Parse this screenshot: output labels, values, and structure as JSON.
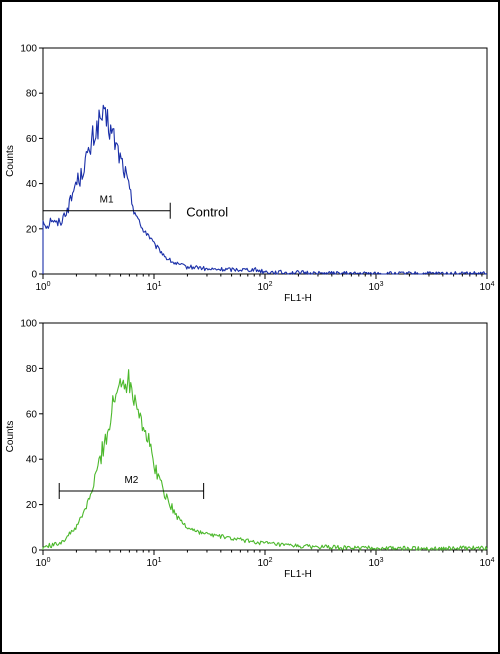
{
  "chart_data": [
    {
      "type": "line",
      "xlabel": "FL1-H",
      "ylabel": "Counts",
      "xscale": "log",
      "xlim": [
        1,
        10000
      ],
      "ylim": [
        0,
        100
      ],
      "x_ticks": [
        {
          "base": "10",
          "exp": "0"
        },
        {
          "base": "10",
          "exp": "1"
        },
        {
          "base": "10",
          "exp": "2"
        },
        {
          "base": "10",
          "exp": "3"
        },
        {
          "base": "10",
          "exp": "4"
        }
      ],
      "y_ticks": [
        "0",
        "20",
        "40",
        "60",
        "80",
        "100"
      ],
      "grid": false,
      "series": [
        {
          "color": "#1a2fa8",
          "points": [
            [
              1.0,
              24
            ],
            [
              1.1,
              21
            ],
            [
              1.2,
              25
            ],
            [
              1.3,
              22
            ],
            [
              1.4,
              23
            ],
            [
              1.5,
              24
            ],
            [
              1.6,
              28
            ],
            [
              1.7,
              30
            ],
            [
              1.8,
              33
            ],
            [
              1.9,
              38
            ],
            [
              2.0,
              41
            ],
            [
              2.2,
              43
            ],
            [
              2.4,
              51
            ],
            [
              2.6,
              52
            ],
            [
              2.8,
              60
            ],
            [
              3.0,
              63
            ],
            [
              3.2,
              67
            ],
            [
              3.4,
              70
            ],
            [
              3.6,
              67
            ],
            [
              3.8,
              68
            ],
            [
              4.0,
              64
            ],
            [
              4.3,
              61
            ],
            [
              4.6,
              56
            ],
            [
              5.0,
              51
            ],
            [
              5.5,
              45
            ],
            [
              6.0,
              37
            ],
            [
              6.5,
              30
            ],
            [
              7.0,
              26
            ],
            [
              7.5,
              21
            ],
            [
              8.0,
              20
            ],
            [
              9.0,
              17
            ],
            [
              10.0,
              13
            ],
            [
              11.0,
              11
            ],
            [
              12.0,
              9
            ],
            [
              13.0,
              7
            ],
            [
              15.0,
              5
            ],
            [
              17.0,
              4
            ],
            [
              20.0,
              3
            ],
            [
              25.0,
              3
            ],
            [
              30.0,
              2
            ],
            [
              40.0,
              2
            ],
            [
              50.0,
              2
            ],
            [
              60.0,
              2
            ],
            [
              80.0,
              2
            ],
            [
              100.0,
              1
            ],
            [
              150.0,
              0.6
            ],
            [
              200.0,
              0.6
            ],
            [
              300.0,
              0.3
            ],
            [
              500.0,
              0.2
            ],
            [
              1000.0,
              0.1
            ],
            [
              3000.0,
              0.1
            ],
            [
              7000.0,
              0.1
            ],
            [
              10000.0,
              0.1
            ]
          ]
        }
      ],
      "marker": {
        "label": "M1",
        "range": [
          1.0,
          14.0
        ],
        "y": 28
      },
      "annotation": "Control"
    },
    {
      "type": "line",
      "xlabel": "FL1-H",
      "ylabel": "Counts",
      "xscale": "log",
      "xlim": [
        1,
        10000
      ],
      "ylim": [
        0,
        100
      ],
      "x_ticks": [
        {
          "base": "10",
          "exp": "0"
        },
        {
          "base": "10",
          "exp": "1"
        },
        {
          "base": "10",
          "exp": "2"
        },
        {
          "base": "10",
          "exp": "3"
        },
        {
          "base": "10",
          "exp": "4"
        }
      ],
      "y_ticks": [
        "0",
        "20",
        "40",
        "60",
        "80",
        "100"
      ],
      "grid": false,
      "series": [
        {
          "color": "#4cb82c",
          "points": [
            [
              1.0,
              1
            ],
            [
              1.1,
              2
            ],
            [
              1.2,
              2
            ],
            [
              1.4,
              3
            ],
            [
              1.6,
              5
            ],
            [
              1.8,
              8
            ],
            [
              2.0,
              10
            ],
            [
              2.2,
              14
            ],
            [
              2.5,
              20
            ],
            [
              2.8,
              27
            ],
            [
              3.0,
              33
            ],
            [
              3.3,
              41
            ],
            [
              3.6,
              48
            ],
            [
              4.0,
              56
            ],
            [
              4.3,
              64
            ],
            [
              4.7,
              70
            ],
            [
              5.0,
              74
            ],
            [
              5.3,
              77
            ],
            [
              5.6,
              76
            ],
            [
              6.0,
              74
            ],
            [
              6.5,
              71
            ],
            [
              7.0,
              66
            ],
            [
              7.5,
              60
            ],
            [
              8.0,
              55
            ],
            [
              9.0,
              47
            ],
            [
              10.0,
              38
            ],
            [
              11.0,
              32
            ],
            [
              12.0,
              27
            ],
            [
              14.0,
              20
            ],
            [
              16.0,
              15
            ],
            [
              18.0,
              12
            ],
            [
              20.0,
              10
            ],
            [
              25.0,
              8
            ],
            [
              30.0,
              7
            ],
            [
              40.0,
              6
            ],
            [
              50.0,
              5
            ],
            [
              70.0,
              4
            ],
            [
              100.0,
              3
            ],
            [
              150.0,
              2
            ],
            [
              250.0,
              1.5
            ],
            [
              500.0,
              1
            ],
            [
              1000.0,
              0.8
            ],
            [
              2000.0,
              0.7
            ],
            [
              5000.0,
              0.8
            ],
            [
              10000.0,
              0.8
            ]
          ]
        }
      ],
      "marker": {
        "label": "M2",
        "range": [
          1.4,
          28.0
        ],
        "y": 26
      }
    }
  ]
}
